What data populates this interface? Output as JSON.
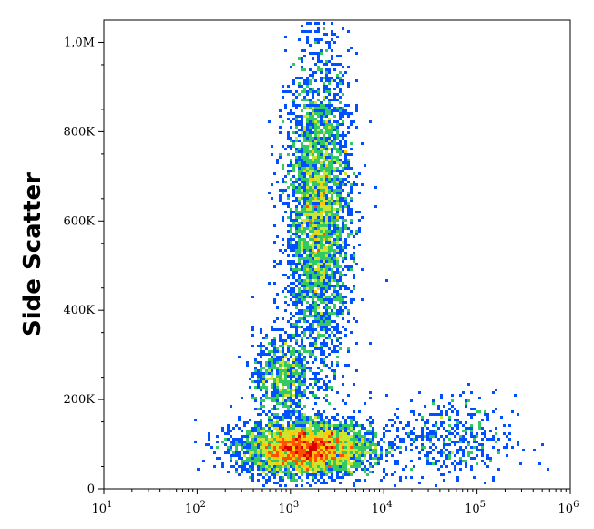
{
  "chart_data": {
    "type": "scatter",
    "subtype": "flow-cytometry-density-dot-plot",
    "title": "",
    "xlabel": "",
    "ylabel": "Side Scatter",
    "x_scale": "log",
    "xlim": [
      10,
      1000000
    ],
    "ylim": [
      0,
      1050000
    ],
    "x_ticks": [
      {
        "value": 10,
        "base": "10",
        "exp": "1"
      },
      {
        "value": 100,
        "base": "10",
        "exp": "2"
      },
      {
        "value": 1000,
        "base": "10",
        "exp": "3"
      },
      {
        "value": 10000,
        "base": "10",
        "exp": "4"
      },
      {
        "value": 100000,
        "base": "10",
        "exp": "5"
      },
      {
        "value": 1000000,
        "base": "10",
        "exp": "6"
      }
    ],
    "y_ticks": [
      {
        "value": 0,
        "label": "0"
      },
      {
        "value": 200000,
        "label": "200K"
      },
      {
        "value": 400000,
        "label": "400K"
      },
      {
        "value": 600000,
        "label": "600K"
      },
      {
        "value": 800000,
        "label": "800K"
      },
      {
        "value": 1000000,
        "label": "1,0M"
      }
    ],
    "populations": [
      {
        "x_center": 1500,
        "y_center": 90000,
        "x_spread_decades": 0.35,
        "y_spread": 30000,
        "weight": 0.45
      },
      {
        "x_center": 800,
        "y_center": 250000,
        "x_spread_decades": 0.15,
        "y_spread": 50000,
        "weight": 0.08
      },
      {
        "x_center": 2000,
        "y_center": 620000,
        "x_spread_decades": 0.17,
        "y_spread": 170000,
        "weight": 0.42
      },
      {
        "x_center": 50000,
        "y_center": 110000,
        "x_spread_decades": 0.35,
        "y_spread": 50000,
        "weight": 0.05
      }
    ],
    "grid": false,
    "legend": "none",
    "colormap": [
      "#0000c8",
      "#0050ff",
      "#00c8ff",
      "#32c864",
      "#c8e632",
      "#ffc800",
      "#ff5000",
      "#dc0000"
    ]
  }
}
